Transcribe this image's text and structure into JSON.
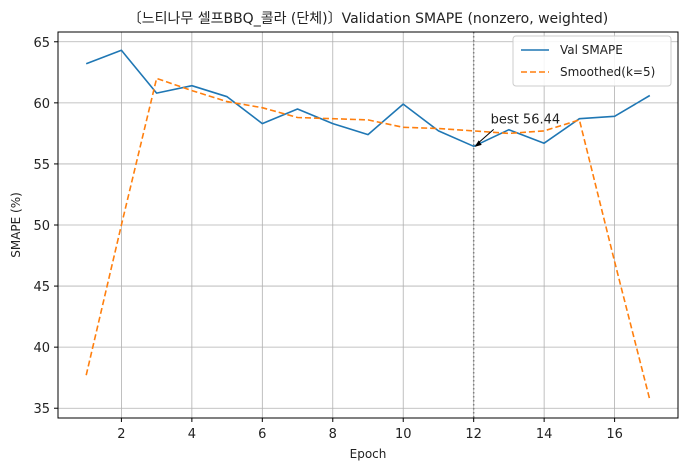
{
  "chart_data": {
    "type": "line",
    "title": "〔느티나무 셀프BBQ_콜라 (단체)〕Validation SMAPE (nonzero, weighted)",
    "xlabel": "Epoch",
    "ylabel": "SMAPE (%)",
    "x": [
      1,
      2,
      3,
      4,
      5,
      6,
      7,
      8,
      9,
      10,
      11,
      12,
      13,
      14,
      15,
      16,
      17
    ],
    "xlim": [
      0.2,
      17.8
    ],
    "ylim": [
      34.2,
      65.8
    ],
    "xticks": [
      2,
      4,
      6,
      8,
      10,
      12,
      14,
      16
    ],
    "yticks": [
      35,
      40,
      45,
      50,
      55,
      60,
      65
    ],
    "grid": true,
    "legend_position": "top-right",
    "series": [
      {
        "name": "Val SMAPE",
        "color": "#1f77b4",
        "style": "solid",
        "values": [
          63.2,
          64.3,
          60.8,
          61.4,
          60.5,
          58.3,
          59.5,
          58.3,
          57.4,
          59.9,
          57.7,
          56.44,
          57.8,
          56.7,
          58.7,
          58.9,
          60.6
        ]
      },
      {
        "name": "Smoothed(k=5)",
        "color": "#ff7f0e",
        "style": "dashed",
        "values": [
          37.7,
          50.0,
          62.0,
          61.0,
          60.1,
          59.6,
          58.8,
          58.7,
          58.6,
          58.0,
          57.9,
          57.7,
          57.5,
          57.7,
          58.6,
          47.0,
          35.7
        ]
      }
    ],
    "vline": {
      "x": 12,
      "style": "dotted",
      "color": "#7f7f7f"
    },
    "annotation": {
      "text": "best 56.44",
      "x": 12,
      "y": 56.44
    }
  }
}
